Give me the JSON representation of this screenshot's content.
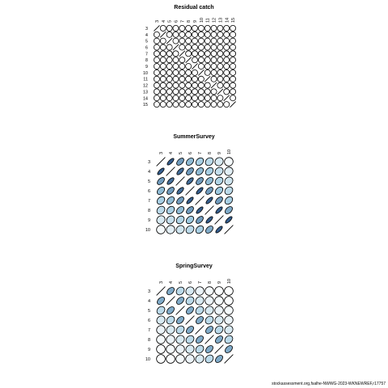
{
  "footer": "stockassessment.org,fsalhe-NWWG-2023-WKNEWREF,r17757",
  "chart_data": [
    {
      "type": "heatmap",
      "title": "Residual catch",
      "ages": [
        3,
        4,
        5,
        6,
        7,
        8,
        9,
        10,
        11,
        12,
        13,
        14,
        15
      ],
      "value_range": [
        -1,
        1
      ],
      "colors": {
        "low": "#ffffff",
        "high": "#08306b"
      },
      "correlations": [
        [
          1,
          0,
          0,
          0,
          0,
          0,
          0,
          0,
          0,
          0,
          0,
          0,
          0
        ],
        [
          0,
          1,
          0,
          0,
          0,
          0,
          0,
          0,
          0,
          0,
          0,
          0,
          0
        ],
        [
          0,
          0,
          1,
          0,
          0,
          0,
          0,
          0,
          0,
          0,
          0,
          0,
          0
        ],
        [
          0,
          0,
          0,
          1,
          0,
          0,
          0,
          0,
          0,
          0,
          0,
          0,
          0
        ],
        [
          0,
          0,
          0,
          0,
          1,
          0,
          0,
          0,
          0,
          0,
          0,
          0,
          0
        ],
        [
          0,
          0,
          0,
          0,
          0,
          1,
          0,
          0,
          0,
          0,
          0,
          0,
          0
        ],
        [
          0,
          0,
          0,
          0,
          0,
          0,
          1,
          0,
          0,
          0,
          0,
          0,
          0
        ],
        [
          0,
          0,
          0,
          0,
          0,
          0,
          0,
          1,
          0,
          0,
          0,
          0,
          0
        ],
        [
          0,
          0,
          0,
          0,
          0,
          0,
          0,
          0,
          1,
          0,
          0,
          0,
          0
        ],
        [
          0,
          0,
          0,
          0,
          0,
          0,
          0,
          0,
          0,
          1,
          0,
          0,
          0
        ],
        [
          0,
          0,
          0,
          0,
          0,
          0,
          0,
          0,
          0,
          0,
          1,
          0,
          0
        ],
        [
          0,
          0,
          0,
          0,
          0,
          0,
          0,
          0,
          0,
          0,
          0,
          1,
          0
        ],
        [
          0,
          0,
          0,
          0,
          0,
          0,
          0,
          0,
          0,
          0,
          0,
          0,
          1
        ]
      ]
    },
    {
      "type": "heatmap",
      "title": "SummerSurvey",
      "ages": [
        3,
        4,
        5,
        6,
        7,
        8,
        9,
        10
      ],
      "value_range": [
        -1,
        1
      ],
      "colors": {
        "low": "#ffffff",
        "high": "#08306b"
      },
      "correlations": [
        [
          1,
          0.85,
          0.65,
          0.55,
          0.45,
          0.35,
          0.2,
          0.05
        ],
        [
          0.85,
          1,
          0.8,
          0.65,
          0.55,
          0.45,
          0.3,
          0.15
        ],
        [
          0.65,
          0.8,
          1,
          0.8,
          0.65,
          0.55,
          0.4,
          0.25
        ],
        [
          0.55,
          0.65,
          0.8,
          1,
          0.85,
          0.65,
          0.5,
          0.35
        ],
        [
          0.45,
          0.55,
          0.65,
          0.85,
          1,
          0.85,
          0.65,
          0.45
        ],
        [
          0.35,
          0.45,
          0.55,
          0.65,
          0.85,
          1,
          0.85,
          0.6
        ],
        [
          0.2,
          0.3,
          0.4,
          0.5,
          0.65,
          0.85,
          1,
          0.85
        ],
        [
          0.05,
          0.15,
          0.25,
          0.35,
          0.45,
          0.6,
          0.85,
          1
        ]
      ]
    },
    {
      "type": "heatmap",
      "title": "SpringSurvey",
      "ages": [
        3,
        4,
        5,
        6,
        7,
        8,
        9,
        10
      ],
      "value_range": [
        -1,
        1
      ],
      "colors": {
        "low": "#ffffff",
        "high": "#08306b"
      },
      "correlations": [
        [
          1,
          0.6,
          0.35,
          0.2,
          0.1,
          0.05,
          0.02,
          0.01
        ],
        [
          0.6,
          1,
          0.6,
          0.35,
          0.2,
          0.1,
          0.05,
          0.02
        ],
        [
          0.35,
          0.6,
          1,
          0.6,
          0.35,
          0.2,
          0.1,
          0.05
        ],
        [
          0.2,
          0.35,
          0.6,
          1,
          0.6,
          0.35,
          0.2,
          0.1
        ],
        [
          0.1,
          0.2,
          0.35,
          0.6,
          1,
          0.6,
          0.35,
          0.2
        ],
        [
          0.05,
          0.1,
          0.2,
          0.35,
          0.6,
          1,
          0.6,
          0.35
        ],
        [
          0.02,
          0.05,
          0.1,
          0.2,
          0.35,
          0.6,
          1,
          0.6
        ],
        [
          0.01,
          0.02,
          0.05,
          0.1,
          0.2,
          0.35,
          0.6,
          1
        ]
      ]
    }
  ]
}
